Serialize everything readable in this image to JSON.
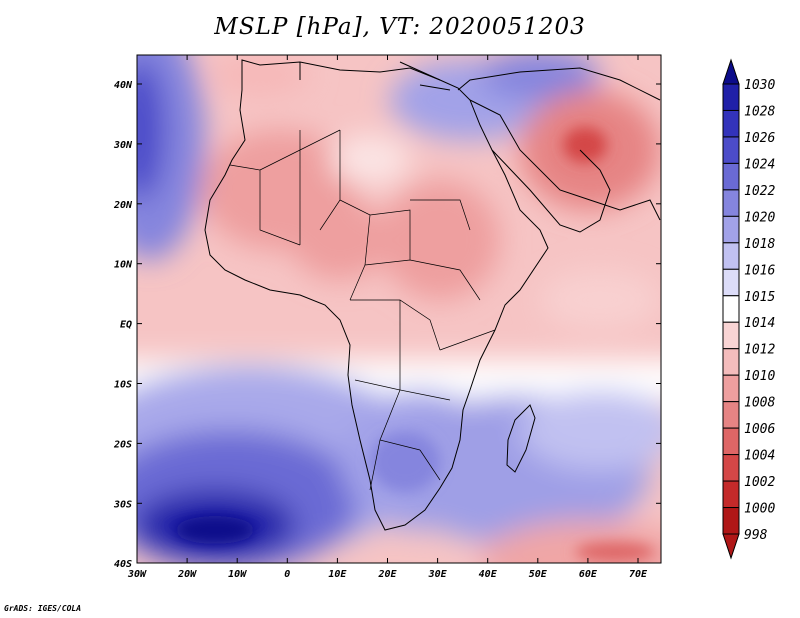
{
  "title": "MSLP [hPa], VT: 2020051203",
  "credit": "GrADS: IGES/COLA",
  "map": {
    "lat_labels": [
      "40N",
      "30N",
      "20N",
      "10N",
      "EQ",
      "10S",
      "20S",
      "30S",
      "40S"
    ],
    "lon_labels": [
      "30W",
      "20W",
      "10W",
      "0",
      "10E",
      "20E",
      "30E",
      "40E",
      "50E",
      "60E",
      "70E"
    ],
    "lat_range": [
      -40,
      45
    ],
    "lon_range": [
      -30,
      75
    ]
  },
  "colorbar": {
    "levels": [
      "1030",
      "1028",
      "1026",
      "1024",
      "1022",
      "1020",
      "1018",
      "1016",
      "1015",
      "1014",
      "1012",
      "1010",
      "1008",
      "1006",
      "1004",
      "1002",
      "1000",
      "998"
    ],
    "colors": [
      "#0c0c8a",
      "#2020a8",
      "#3333bb",
      "#4c4cc9",
      "#6a6ad4",
      "#8585de",
      "#a2a2e8",
      "#c1c1f1",
      "#dcdcf8",
      "#ffffff",
      "#f9d4d4",
      "#f4bcbc",
      "#ee9f9f",
      "#e68484",
      "#de6666",
      "#d44747",
      "#c42a2a",
      "#b01717"
    ]
  }
}
